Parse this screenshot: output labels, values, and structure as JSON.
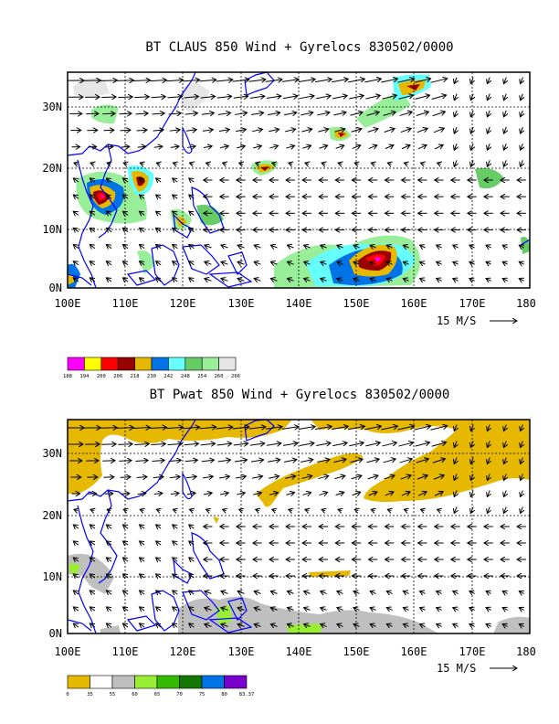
{
  "panels": [
    {
      "id": "top",
      "title": "BT CLAUS 850 Wind + Gyrelocs 830502/0000",
      "lon_labels": [
        "100E",
        "110E",
        "120E",
        "130E",
        "140E",
        "150E",
        "160E",
        "170E",
        "180"
      ],
      "lat_labels": [
        "30N",
        "20N",
        "10N",
        "0N"
      ],
      "lon_range": [
        100,
        180
      ],
      "lat_range": [
        0,
        35
      ],
      "reference_vector": "15 M/S",
      "colorbar": {
        "colors": [
          "#ff00ff",
          "#ffff00",
          "#ff0000",
          "#990000",
          "#e6b800",
          "#0073e6",
          "#66ffff",
          "#66cc66",
          "#99ee99",
          "#e6e6e6"
        ],
        "labels": [
          "188",
          "194",
          "200",
          "206",
          "218",
          "230",
          "242",
          "248",
          "254",
          "260",
          "266"
        ]
      }
    },
    {
      "id": "bottom",
      "title": "BT Pwat 850 Wind + Gyrelocs 830502/0000",
      "lon_labels": [
        "100E",
        "110E",
        "120E",
        "130E",
        "140E",
        "150E",
        "160E",
        "170E",
        "180"
      ],
      "lat_labels": [
        "30N",
        "20N",
        "10N",
        "0N"
      ],
      "lon_range": [
        100,
        180
      ],
      "lat_range": [
        0,
        35
      ],
      "reference_vector": "15 M/S",
      "colorbar": {
        "colors": [
          "#e6b800",
          "#ffffff",
          "#bfbfbf",
          "#99ee33",
          "#33bb00",
          "#117700",
          "#0073e6",
          "#7a00cc"
        ],
        "labels": [
          "0",
          "35",
          "55",
          "60",
          "65",
          "70",
          "75",
          "80",
          "83.37"
        ]
      }
    }
  ]
}
